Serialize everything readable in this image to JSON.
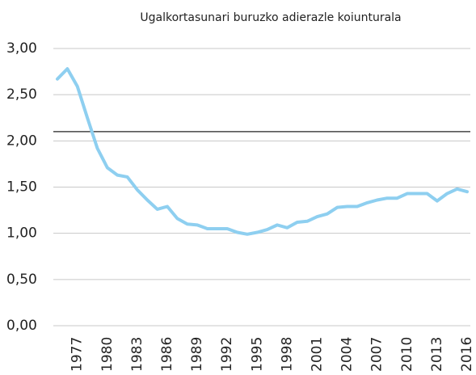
{
  "chart_data": {
    "type": "line",
    "title": "Ugalkortasunari buruzko adierazle koiunturala",
    "x": [
      1975,
      1976,
      1977,
      1978,
      1979,
      1980,
      1981,
      1982,
      1983,
      1984,
      1985,
      1986,
      1987,
      1988,
      1989,
      1990,
      1991,
      1992,
      1993,
      1994,
      1995,
      1996,
      1997,
      1998,
      1999,
      2000,
      2001,
      2002,
      2003,
      2004,
      2005,
      2006,
      2007,
      2008,
      2009,
      2010,
      2011,
      2012,
      2013,
      2014,
      2015,
      2016
    ],
    "series": [
      {
        "color": "#8ecff0",
        "values": [
          2.67,
          2.78,
          2.59,
          2.25,
          1.92,
          1.71,
          1.63,
          1.61,
          1.47,
          1.36,
          1.26,
          1.29,
          1.16,
          1.1,
          1.09,
          1.05,
          1.05,
          1.05,
          1.01,
          0.99,
          1.01,
          1.04,
          1.09,
          1.06,
          1.12,
          1.13,
          1.18,
          1.21,
          1.28,
          1.29,
          1.29,
          1.33,
          1.36,
          1.38,
          1.38,
          1.43,
          1.43,
          1.43,
          1.35,
          1.43,
          1.48,
          1.45
        ]
      }
    ],
    "xlim": [
      1975,
      2016
    ],
    "xticks": [
      1977,
      1980,
      1983,
      1986,
      1989,
      1992,
      1995,
      1998,
      2001,
      2004,
      2007,
      2010,
      2013,
      2016
    ],
    "ylim": [
      0,
      3
    ],
    "yticks": [
      {
        "value": 0,
        "label": "0,00"
      },
      {
        "value": 0.5,
        "label": "0,50"
      },
      {
        "value": 1,
        "label": "1,00"
      },
      {
        "value": 1.5,
        "label": "1,50"
      },
      {
        "value": 2,
        "label": "2,00"
      },
      {
        "value": 2.5,
        "label": "2,50"
      },
      {
        "value": 3,
        "label": "3,00"
      }
    ],
    "reference_line": 2.1,
    "grid": true
  }
}
